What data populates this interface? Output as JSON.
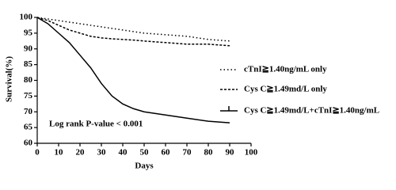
{
  "chart_data": {
    "type": "line",
    "x_label": "Days",
    "y_label": "Survival(%)",
    "annotation": "Log rank P-value < 0.001",
    "x": [
      0,
      5,
      10,
      15,
      20,
      25,
      30,
      35,
      40,
      45,
      50,
      60,
      70,
      80,
      90
    ],
    "series": [
      {
        "name": "cTnI≧1.40ng/mL only",
        "color": "#000000",
        "line_style": "dotted",
        "values": [
          100,
          99.5,
          99,
          98.5,
          98,
          97.5,
          97,
          96.5,
          96,
          95.5,
          95,
          94.5,
          94,
          93,
          92.5
        ]
      },
      {
        "name": "Cys C≧1.49md/L only",
        "color": "#000000",
        "line_style": "dashed",
        "values": [
          100,
          99,
          97.5,
          96,
          95,
          94,
          93.5,
          93.2,
          93,
          92.8,
          92.5,
          92,
          91.5,
          91.5,
          91
        ]
      },
      {
        "name": "Cys C≧1.49md/L+cTnI≧1.40ng/mL",
        "color": "#000000",
        "line_style": "solid",
        "values": [
          100,
          98,
          95,
          92,
          88,
          84,
          79,
          75,
          72.5,
          71,
          70,
          69,
          68,
          67,
          66.5
        ]
      }
    ],
    "xlim": [
      0,
      100
    ],
    "xticks": [
      0,
      10,
      20,
      30,
      40,
      50,
      60,
      70,
      80,
      90,
      100
    ],
    "ylim": [
      60,
      100
    ],
    "yticks": [
      60,
      65,
      70,
      75,
      80,
      85,
      90,
      95,
      100
    ],
    "grid": false
  }
}
